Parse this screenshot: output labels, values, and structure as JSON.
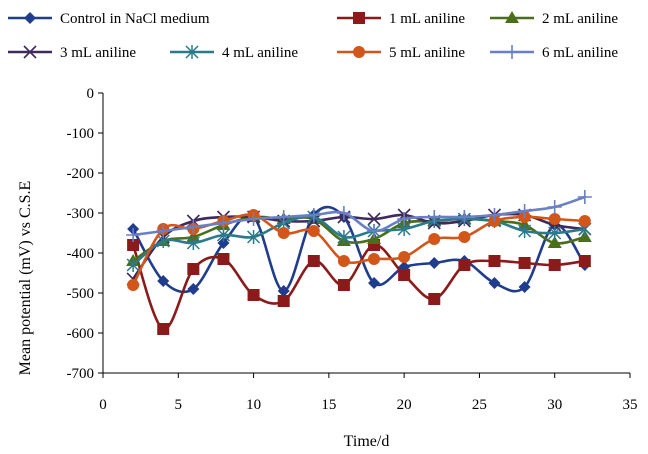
{
  "chart_data": {
    "type": "line",
    "title": "",
    "xlabel": "Time/d",
    "ylabel": "Mean potential (mV) vs C.S.E",
    "xlim": [
      0,
      35
    ],
    "ylim": [
      -700,
      0
    ],
    "xticks": [
      0,
      5,
      10,
      15,
      20,
      25,
      30,
      35
    ],
    "yticks": [
      0,
      -100,
      -200,
      -300,
      -400,
      -500,
      -600,
      -700
    ],
    "grid": false,
    "legend": "top",
    "x": [
      2,
      4,
      6,
      8,
      10,
      12,
      14,
      16,
      18,
      20,
      22,
      24,
      26,
      28,
      30,
      32
    ],
    "series": [
      {
        "name": "Control in NaCl  medium",
        "color": "#1f3d8c",
        "marker": "diamond",
        "values": [
          -340,
          -470,
          -490,
          -375,
          -310,
          -495,
          -305,
          -310,
          -475,
          -435,
          -425,
          -420,
          -475,
          -485,
          -330,
          -430
        ]
      },
      {
        "name": "1 mL aniline",
        "color": "#8b1a1a",
        "marker": "square",
        "values": [
          -380,
          -590,
          -440,
          -415,
          -505,
          -520,
          -420,
          -480,
          -380,
          -455,
          -515,
          -430,
          -420,
          -425,
          -430,
          -420
        ]
      },
      {
        "name": "2 mL aniline",
        "color": "#4b6e1a",
        "marker": "triangle",
        "values": [
          -420,
          -370,
          -360,
          -330,
          -310,
          -315,
          -315,
          -370,
          -365,
          -325,
          -320,
          -315,
          -320,
          -330,
          -375,
          -360
        ]
      },
      {
        "name": "3 mL aniline",
        "color": "#3f2a5e",
        "marker": "x",
        "values": [
          -465,
          -360,
          -320,
          -310,
          -310,
          -320,
          -320,
          -310,
          -315,
          -305,
          -325,
          -320,
          -305,
          -305,
          -330,
          -340
        ]
      },
      {
        "name": "4 mL aniline",
        "color": "#2b7a8c",
        "marker": "asterisk",
        "values": [
          -430,
          -370,
          -375,
          -355,
          -360,
          -325,
          -310,
          -360,
          -345,
          -340,
          -320,
          -315,
          -320,
          -345,
          -350,
          -340
        ]
      },
      {
        "name": "5 mL aniline",
        "color": "#d2561a",
        "marker": "circle",
        "values": [
          -480,
          -340,
          -340,
          -320,
          -305,
          -350,
          -345,
          -420,
          -415,
          -410,
          -365,
          -360,
          -320,
          -310,
          -315,
          -320
        ]
      },
      {
        "name": "6 mL aniline",
        "color": "#6b7fc4",
        "marker": "plus",
        "values": [
          -355,
          -345,
          -335,
          -325,
          -315,
          -310,
          -305,
          -300,
          -345,
          -315,
          -310,
          -310,
          -305,
          -295,
          -285,
          -260
        ]
      }
    ]
  }
}
